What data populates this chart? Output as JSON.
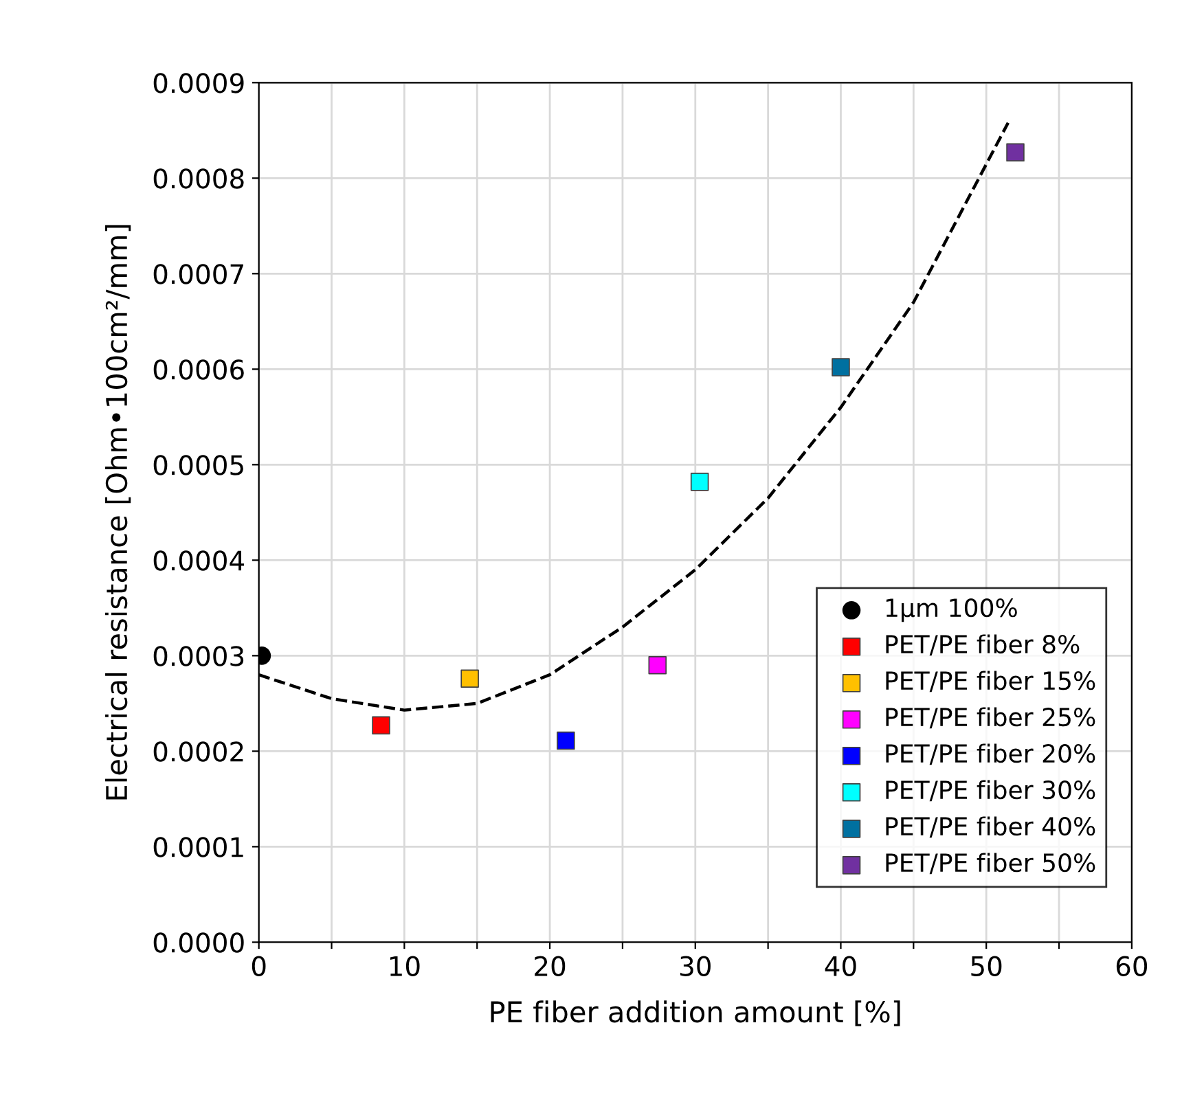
{
  "chart_data": {
    "type": "scatter",
    "xlabel": "PE fiber addition amount [%]",
    "ylabel": "Electrical resistance [Ohm•100cm²/mm]",
    "xlim": [
      0,
      60
    ],
    "ylim": [
      0,
      0.0009
    ],
    "xticks": [
      0,
      {
        "value": 5,
        "label": null
      },
      10,
      {
        "value": 15,
        "label": null
      },
      20,
      {
        "value": 25,
        "label": null
      },
      30,
      {
        "value": 35,
        "label": null
      },
      40,
      {
        "value": 45,
        "label": null
      },
      50,
      {
        "value": 55,
        "label": null
      },
      60
    ],
    "yticks": [
      {
        "value": 0,
        "label": "0.0000"
      },
      {
        "value": 0.0001,
        "label": "0.0001"
      },
      {
        "value": 0.0002,
        "label": "0.0002"
      },
      {
        "value": 0.0003,
        "label": "0.0003"
      },
      {
        "value": 0.0004,
        "label": "0.0004"
      },
      {
        "value": 0.0005,
        "label": "0.0005"
      },
      {
        "value": 0.0006,
        "label": "0.0006"
      },
      {
        "value": 0.0007,
        "label": "0.0007"
      },
      {
        "value": 0.0008,
        "label": "0.0008"
      },
      {
        "value": 0.0009,
        "label": "0.0009"
      }
    ],
    "grid": true,
    "legend": "lower right",
    "series": [
      {
        "name": "1µm 100%",
        "color": "#000000",
        "marker": "circle",
        "x": [
          0.2
        ],
        "values": [
          0.0003
        ]
      },
      {
        "name": "PET/PE fiber 8%",
        "color": "#ff0000",
        "marker": "square",
        "x": [
          8.4
        ],
        "values": [
          0.000227
        ]
      },
      {
        "name": "PET/PE fiber 15%",
        "color": "#ffc000",
        "marker": "square",
        "x": [
          14.5
        ],
        "values": [
          0.000276
        ]
      },
      {
        "name": "PET/PE fiber 25%",
        "color": "#ff00ff",
        "marker": "square",
        "x": [
          27.4
        ],
        "values": [
          0.00029
        ]
      },
      {
        "name": "PET/PE fiber 20%",
        "color": "#0000ff",
        "marker": "square",
        "x": [
          21.1
        ],
        "values": [
          0.000211
        ]
      },
      {
        "name": "PET/PE fiber 30%",
        "color": "#00ffff",
        "marker": "square",
        "x": [
          30.3
        ],
        "values": [
          0.000482
        ]
      },
      {
        "name": "PET/PE fiber 40%",
        "color": "#0070a0",
        "marker": "square",
        "x": [
          40.0
        ],
        "values": [
          0.000602
        ]
      },
      {
        "name": "PET/PE fiber 50%",
        "color": "#7030a0",
        "marker": "square",
        "x": [
          52.0
        ],
        "values": [
          0.000827
        ]
      },
      {
        "type": "line",
        "color": "#000000",
        "marker": "none",
        "line_style": "dashed",
        "x": [
          0,
          5,
          10,
          15,
          20,
          25,
          30,
          35,
          40,
          45,
          51.5
        ],
        "values": [
          0.00028,
          0.000255,
          0.000243,
          0.00025,
          0.00028,
          0.00033,
          0.00039,
          0.000465,
          0.00056,
          0.00067,
          0.000858
        ]
      }
    ]
  }
}
